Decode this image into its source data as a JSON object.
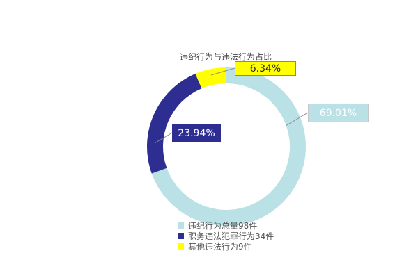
{
  "chart_data": {
    "type": "pie",
    "variant": "donut",
    "title": "违纪行为与违法行为占比",
    "legend_placement": "bottom",
    "slices": [
      {
        "name": "违纪行为总量98件",
        "value": 69.01,
        "label": "69.01%",
        "color": "#b9e1e6",
        "label_bg": "#b9e1e6",
        "label_color": "#ffffff"
      },
      {
        "name": "职务违法犯罪行为34件",
        "value": 23.94,
        "label": "23.94%",
        "color": "#2e2d92",
        "label_bg": "#2e2d92",
        "label_color": "#ffffff"
      },
      {
        "name": "其他违法行为9件",
        "value": 6.34,
        "label": "6.34%",
        "color": "#ffff00",
        "label_bg": "#ffff00",
        "label_color": "#222222"
      }
    ]
  }
}
